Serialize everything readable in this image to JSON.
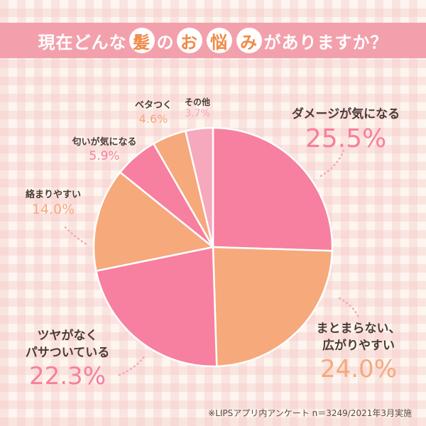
{
  "title": {
    "before": "現在どんな",
    "badge1": "髪",
    "middle": "の",
    "badge2": "お",
    "badge3": "悩",
    "badge4": "み",
    "after": "がありますか？"
  },
  "footnote": "※LIPSアプリ内アンケート n＝3249/2021年3月実施",
  "colors": {
    "title_band": "#f3a0ad",
    "pink": "#f77fa0",
    "orange": "#f6a97b",
    "light_pink": "#f6a8bd"
  },
  "chart_data": {
    "type": "pie",
    "title": "現在どんな髪のお悩みがありますか？",
    "slices": [
      {
        "label": "ダメージが気になる",
        "value": 25.5,
        "display": "25.5%",
        "color": "#f77fa0"
      },
      {
        "label": "まとまらない、広がりやすい",
        "line1": "まとまらない、",
        "line2": "広がりやすい",
        "value": 24.0,
        "display": "24.0%",
        "color": "#f6a97b"
      },
      {
        "label": "ツヤがなくパサついている",
        "line1": "ツヤがなく",
        "line2": "パサついている",
        "value": 22.3,
        "display": "22.3%",
        "color": "#f77fa0"
      },
      {
        "label": "絡まりやすい",
        "value": 14.0,
        "display": "14.0%",
        "color": "#f6a97b"
      },
      {
        "label": "匂いが気になる",
        "value": 5.9,
        "display": "5.9%",
        "color": "#f77fa0"
      },
      {
        "label": "ベタつく",
        "value": 4.6,
        "display": "4.6%",
        "color": "#f6a97b"
      },
      {
        "label": "その他",
        "value": 3.7,
        "display": "3.7%",
        "color": "#f6a8bd"
      }
    ]
  }
}
